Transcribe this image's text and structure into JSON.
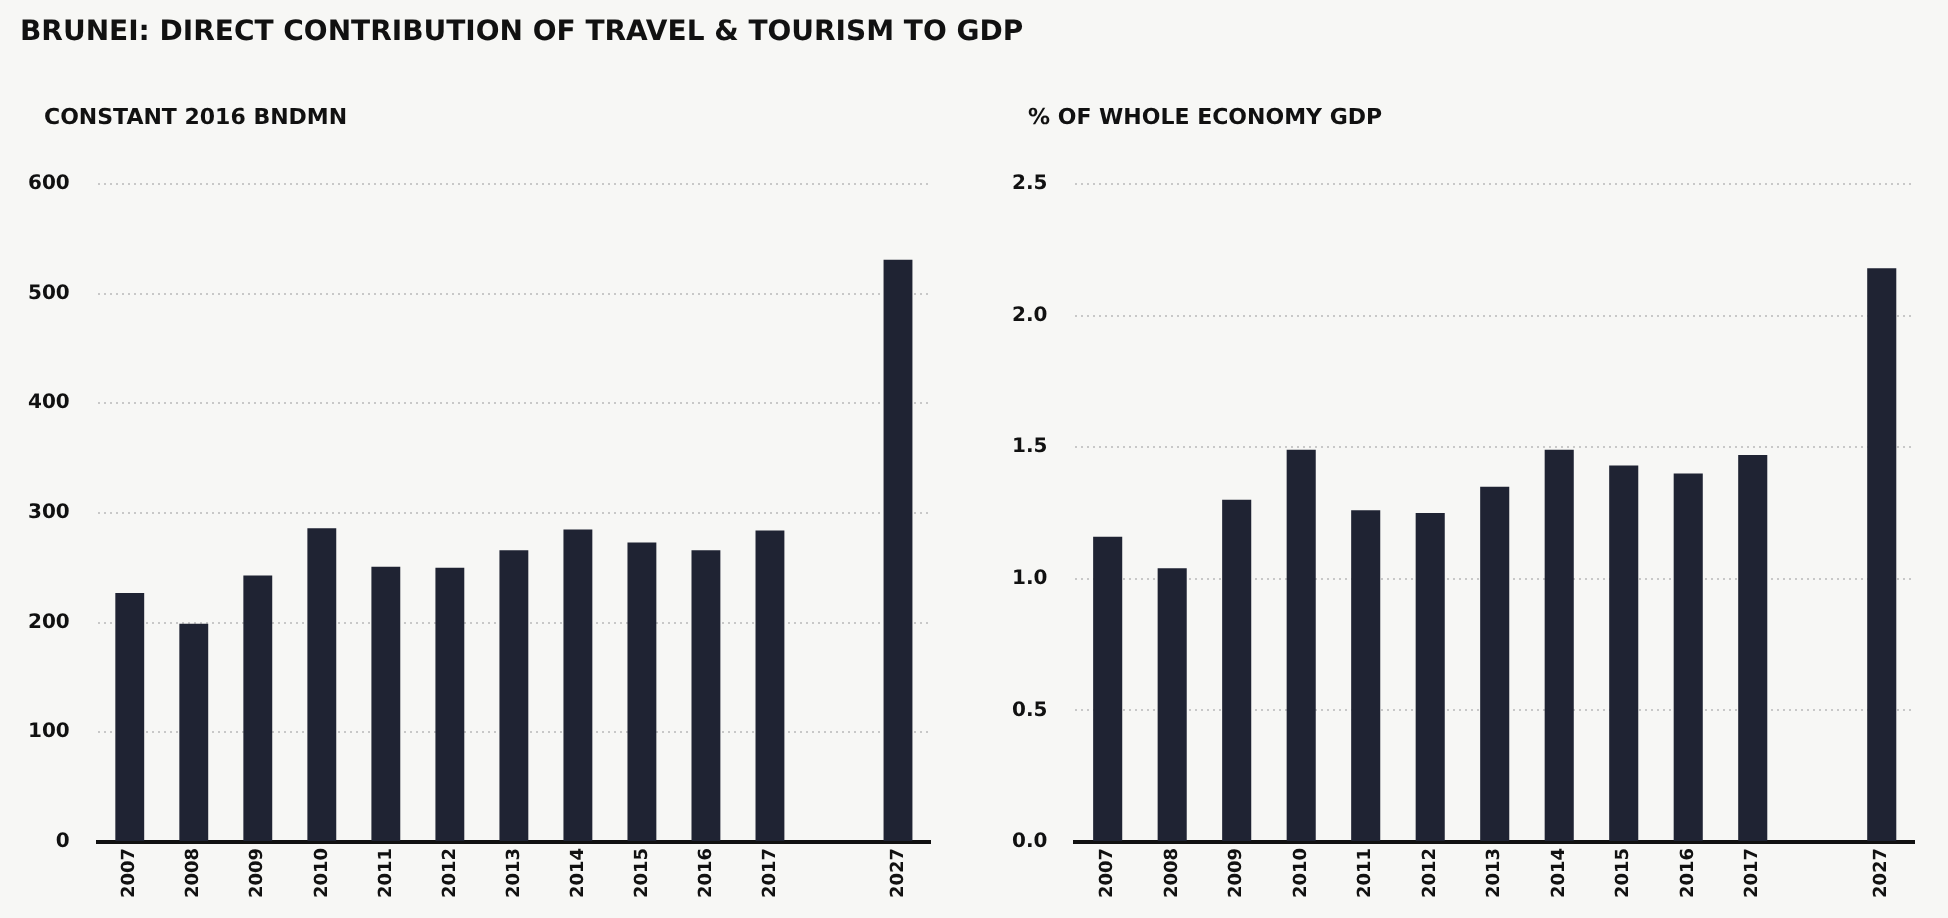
{
  "chart_data": [
    {
      "type": "bar",
      "title": "BRUNEI: DIRECT CONTRIBUTION OF  TRAVEL & TOURISM TO GDP",
      "ylabel": "CONSTANT 2016 BNDMN",
      "categories": [
        "2007",
        "2008",
        "2009",
        "2010",
        "2011",
        "2012",
        "2013",
        "2014",
        "2015",
        "2016",
        "2017",
        null,
        "2027"
      ],
      "values": [
        227,
        199,
        243,
        286,
        251,
        250,
        266,
        285,
        273,
        266,
        284,
        null,
        531
      ],
      "color": "#1f2333",
      "ylim": [
        0,
        600
      ],
      "yticks": [
        0,
        100,
        200,
        300,
        400,
        500,
        600
      ],
      "grid": "y",
      "legend": false
    },
    {
      "type": "bar",
      "ylabel": "% OF WHOLE ECONOMY GDP",
      "categories": [
        "2007",
        "2008",
        "2009",
        "2010",
        "2011",
        "2012",
        "2013",
        "2014",
        "2015",
        "2016",
        "2017",
        null,
        "2027"
      ],
      "values": [
        1.16,
        1.04,
        1.3,
        1.49,
        1.26,
        1.25,
        1.35,
        1.49,
        1.43,
        1.4,
        1.47,
        null,
        2.18
      ],
      "color": "#1f2333",
      "ylim": [
        0,
        2.5
      ],
      "yticks": [
        {
          "value": 0,
          "label": "0.0"
        },
        0.5,
        {
          "value": 1,
          "label": "1.0"
        },
        1.5,
        {
          "value": 2,
          "label": "2.0"
        },
        2.5
      ],
      "grid": "y",
      "legend": false
    }
  ]
}
